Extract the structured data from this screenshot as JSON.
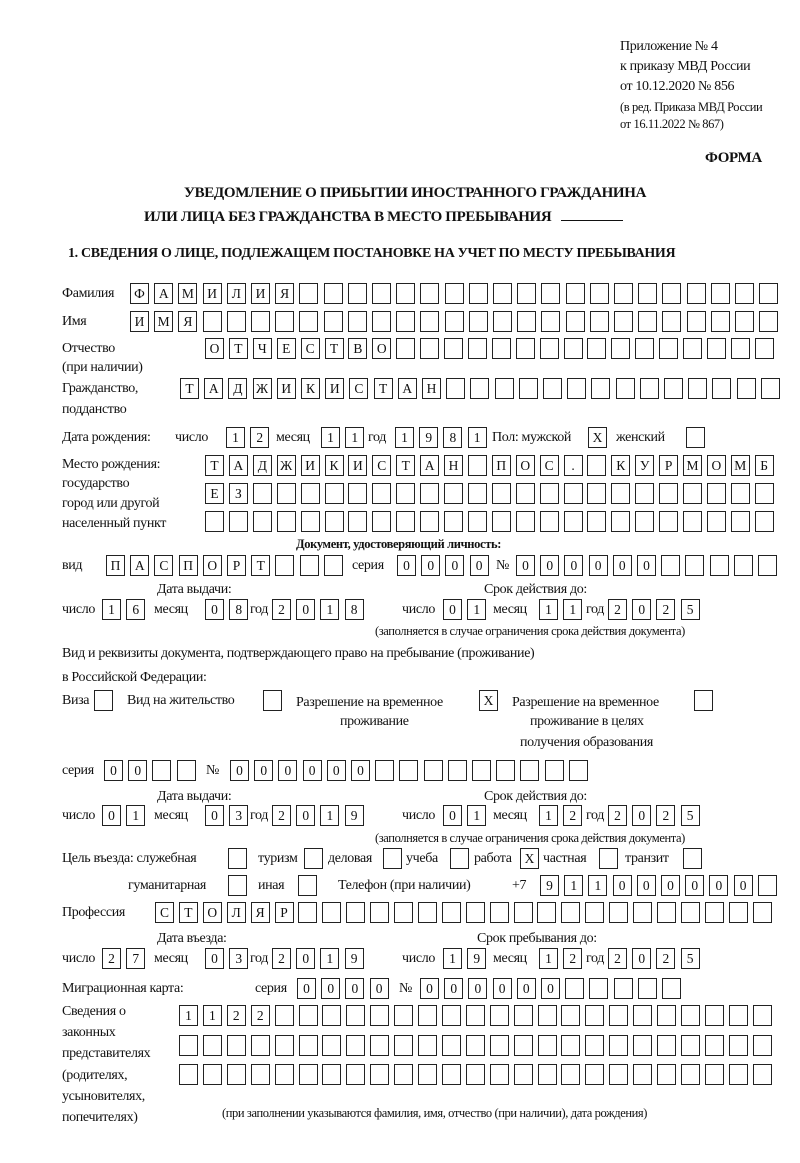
{
  "header": {
    "appendix_lines": [
      "Приложение № 4",
      "к приказу МВД России",
      "от 10.12.2020 № 856"
    ],
    "edition_lines": [
      "(в ред. Приказа МВД России",
      "от 16.11.2022 № 867)"
    ],
    "forma": "ФОРМА",
    "title_line1": "УВЕДОМЛЕНИЕ О ПРИБЫТИИ ИНОСТРАННОГО ГРАЖДАНИНА",
    "title_line2": "ИЛИ ЛИЦА БЕЗ ГРАЖДАНСТВА В МЕСТО ПРЕБЫВАНИЯ"
  },
  "section1_title": "1. СВЕДЕНИЯ О ЛИЦЕ, ПОДЛЕЖАЩЕМ ПОСТАНОВКЕ НА УЧЕТ ПО МЕСТУ ПРЕБЫВАНИЯ",
  "labels": {
    "surname": "Фамилия",
    "name": "Имя",
    "patronymic": "Отчество",
    "patronymic_note": "(при наличии)",
    "citizenship": "Гражданство,",
    "citizenship2": "подданство",
    "birth_date": "Дата рождения:",
    "day": "число",
    "month": "месяц",
    "year": "год",
    "sex": "Пол: мужской",
    "female": "женский",
    "birth_place": "Место рождения:",
    "birth_place2": "государство",
    "birth_place3": "город или другой",
    "birth_place4": "населенный пункт",
    "id_doc": "Документ, удостоверяющий личность:",
    "kind": "вид",
    "series": "серия",
    "number": "№",
    "issue_date": "Дата выдачи:",
    "valid_until": "Срок действия до:",
    "validity_note": "(заполняется в случае ограничения срока действия документа)",
    "residence_doc": "Вид и реквизиты документа, подтверждающего право на пребывание (проживание)",
    "residence_doc2": "в Российской Федерации:",
    "visa": "Виза",
    "residence_permit": "Вид на жительство",
    "temp_permit": "Разрешение на временное",
    "temp_permit2": "проживание",
    "temp_permit_edu": "Разрешение на временное",
    "temp_permit_edu2": "проживание в целях",
    "temp_permit_edu3": "получения образования",
    "purpose": "Цель въезда: служебная",
    "tourism": "туризм",
    "business": "деловая",
    "study": "учеба",
    "work": "работа",
    "private": "частная",
    "transit": "транзит",
    "humanitarian": "гуманитарная",
    "other": "иная",
    "phone": "Телефон (при наличии)",
    "phone_prefix": "+7",
    "profession": "Профессия",
    "entry_date": "Дата въезда:",
    "stay_until": "Срок пребывания до:",
    "migration_card": "Миграционная карта:",
    "reps1": "Сведения о",
    "reps2": "законных",
    "reps3": "представителях",
    "reps4": "(родителях,",
    "reps5": "усыновителях,",
    "reps6": "попечителях)",
    "reps_note": "(при заполнении указываются фамилия, имя, отчество (при наличии), дата рождения)"
  },
  "fields": {
    "surname": "ФАМИЛИЯ",
    "name": "ИМЯ",
    "patronymic": "ОТЧЕСТВО",
    "citizenship": "ТАДЖИКИСТАН",
    "birth_day": "12",
    "birth_month": "11",
    "birth_year": "1981",
    "sex_male": "X",
    "sex_female": "",
    "birth_place_1": "ТАДЖИКИСТАН ПОС. КУРМОМБ",
    "birth_place_2": "ЕЗ",
    "birth_place_3": "",
    "id_kind": "ПАСПОРТ",
    "id_series": "0000",
    "id_number": "000000",
    "id_issue_day": "16",
    "id_issue_month": "08",
    "id_issue_year": "2018",
    "id_valid_day": "01",
    "id_valid_month": "11",
    "id_valid_year": "2025",
    "visa": "",
    "residence_permit": "",
    "temp_permit": "X",
    "temp_permit_edu": "",
    "res_series": "00",
    "res_number": "000000",
    "res_issue_day": "01",
    "res_issue_month": "03",
    "res_issue_year": "2019",
    "res_valid_day": "01",
    "res_valid_month": "12",
    "res_valid_year": "2025",
    "purpose_official": "",
    "purpose_tourism": "",
    "purpose_business": "",
    "purpose_study": "",
    "purpose_work": "X",
    "purpose_private": "",
    "purpose_transit": "",
    "purpose_humanitarian": "",
    "purpose_other": "",
    "phone": "911000000",
    "profession": "СТОЛЯР",
    "entry_day": "27",
    "entry_month": "03",
    "entry_year": "2019",
    "stay_day": "19",
    "stay_month": "12",
    "stay_year": "2025",
    "mig_series": "0000",
    "mig_number": "000000",
    "reps_1": "1122",
    "reps_2": "",
    "reps_3": ""
  }
}
